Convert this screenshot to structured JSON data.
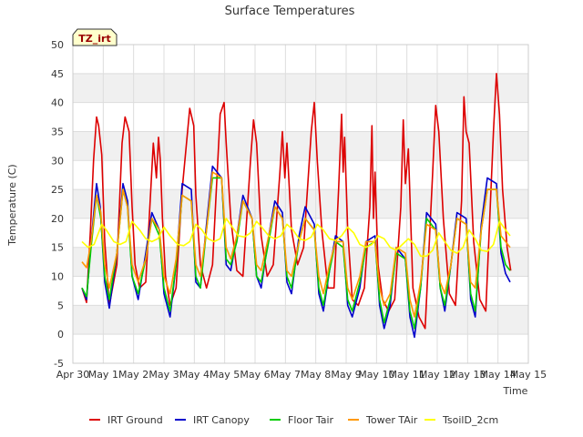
{
  "chart_data": {
    "type": "line",
    "title": "Surface Temperatures",
    "xlabel": "Time",
    "ylabel": "Temperature (C)",
    "badge": "TZ_irt",
    "ylim": [
      -5,
      50
    ],
    "xlim": [
      0,
      15
    ],
    "y_ticks": [
      -5,
      0,
      5,
      10,
      15,
      20,
      25,
      30,
      35,
      40,
      45,
      50
    ],
    "x_ticks": [
      {
        "v": 0,
        "label": "Apr 30"
      },
      {
        "v": 1,
        "label": "May 1"
      },
      {
        "v": 2,
        "label": "May 2"
      },
      {
        "v": 3,
        "label": "May 3"
      },
      {
        "v": 4,
        "label": "May 4"
      },
      {
        "v": 5,
        "label": "May 5"
      },
      {
        "v": 6,
        "label": "May 6"
      },
      {
        "v": 7,
        "label": "May 7"
      },
      {
        "v": 8,
        "label": "May 8"
      },
      {
        "v": 9,
        "label": "May 9"
      },
      {
        "v": 10,
        "label": "May 10"
      },
      {
        "v": 11,
        "label": "May 11"
      },
      {
        "v": 12,
        "label": "May 12"
      },
      {
        "v": 13,
        "label": "May 13"
      },
      {
        "v": 14,
        "label": "May 14"
      },
      {
        "v": 15,
        "label": "May 15"
      }
    ],
    "grid": true,
    "legend_position": "bottom",
    "series": [
      {
        "name": "IRT Ground",
        "color": "#dd0000",
        "x": [
          0.3,
          0.45,
          0.58,
          0.68,
          0.78,
          0.85,
          0.95,
          1.05,
          1.2,
          1.45,
          1.62,
          1.72,
          1.85,
          1.95,
          2.05,
          2.2,
          2.4,
          2.65,
          2.75,
          2.82,
          2.88,
          2.95,
          3.05,
          3.2,
          3.4,
          3.6,
          3.85,
          3.98,
          4.05,
          4.2,
          4.4,
          4.6,
          4.85,
          4.98,
          5.05,
          5.2,
          5.4,
          5.6,
          5.85,
          5.95,
          6.05,
          6.2,
          6.4,
          6.6,
          6.82,
          6.9,
          6.98,
          7.05,
          7.2,
          7.4,
          7.6,
          7.85,
          7.95,
          8.05,
          8.2,
          8.4,
          8.6,
          8.75,
          8.85,
          8.9,
          8.95,
          9.05,
          9.2,
          9.4,
          9.6,
          9.78,
          9.85,
          9.9,
          9.95,
          10.05,
          10.2,
          10.4,
          10.6,
          10.8,
          10.88,
          10.95,
          11.05,
          11.2,
          11.4,
          11.6,
          11.85,
          11.95,
          12.05,
          12.2,
          12.4,
          12.6,
          12.8,
          12.88,
          12.95,
          13.05,
          13.2,
          13.4,
          13.6,
          13.85,
          13.95,
          14.05,
          14.15,
          14.3,
          14.42
        ],
        "y": [
          8,
          5.5,
          18,
          30,
          37.5,
          36,
          31,
          16,
          5,
          12,
          33,
          37.5,
          35,
          22,
          12,
          8,
          9,
          33,
          27,
          34,
          30,
          20,
          10,
          5,
          8,
          25,
          39,
          36,
          24,
          12,
          8,
          12,
          38,
          40,
          33,
          20,
          11,
          10,
          30,
          37,
          33,
          17,
          10,
          12,
          28,
          35,
          27,
          33,
          18,
          12,
          15,
          35,
          40,
          30,
          18,
          8,
          8,
          25,
          38,
          28,
          34,
          18,
          6,
          5,
          8,
          22,
          36,
          20,
          28,
          12,
          6,
          4,
          6,
          22,
          37,
          26,
          32,
          8,
          3,
          1,
          28,
          39.5,
          35,
          20,
          7,
          5,
          23,
          41,
          35,
          33,
          16,
          6,
          4,
          35,
          45,
          38,
          25,
          15,
          11
        ]
      },
      {
        "name": "IRT Canopy",
        "color": "#0000cc",
        "x": [
          0.3,
          0.45,
          0.6,
          0.78,
          0.9,
          1.05,
          1.2,
          1.45,
          1.65,
          1.8,
          1.95,
          2.15,
          2.4,
          2.6,
          2.85,
          3.0,
          3.2,
          3.4,
          3.6,
          3.9,
          4.05,
          4.2,
          4.4,
          4.6,
          4.9,
          5.05,
          5.2,
          5.4,
          5.6,
          5.9,
          6.05,
          6.2,
          6.45,
          6.65,
          6.9,
          7.05,
          7.2,
          7.45,
          7.65,
          7.95,
          8.1,
          8.25,
          8.45,
          8.65,
          8.9,
          9.05,
          9.2,
          9.45,
          9.65,
          9.95,
          10.1,
          10.25,
          10.45,
          10.65,
          10.95,
          11.1,
          11.25,
          11.45,
          11.65,
          11.95,
          12.1,
          12.25,
          12.45,
          12.65,
          12.95,
          13.1,
          13.25,
          13.45,
          13.65,
          13.95,
          14.1,
          14.25,
          14.4
        ],
        "y": [
          8,
          6,
          16,
          26,
          22,
          9,
          4.5,
          14,
          26,
          23,
          10,
          6,
          14,
          21,
          18,
          7,
          3,
          12,
          26,
          25,
          9,
          8,
          19,
          29,
          27,
          12,
          11,
          17,
          24,
          20,
          10,
          8,
          17,
          23,
          21,
          9,
          7,
          17,
          22,
          19,
          7,
          4,
          11,
          17,
          16,
          5,
          3,
          8,
          16,
          17,
          5,
          1,
          5,
          15,
          13,
          3,
          -0.5,
          8,
          21,
          19,
          8,
          4,
          12,
          21,
          20,
          6,
          3,
          19,
          27,
          26,
          14,
          10.5,
          9
        ]
      },
      {
        "name": "Floor Tair",
        "color": "#00cc00",
        "x": [
          0.3,
          0.45,
          0.6,
          0.78,
          0.92,
          1.05,
          1.2,
          1.45,
          1.65,
          1.8,
          1.95,
          2.15,
          2.4,
          2.6,
          2.85,
          3.0,
          3.2,
          3.4,
          3.6,
          3.9,
          4.05,
          4.2,
          4.4,
          4.6,
          4.9,
          5.05,
          5.2,
          5.4,
          5.6,
          5.9,
          6.05,
          6.2,
          6.45,
          6.65,
          6.9,
          7.05,
          7.2,
          7.45,
          7.65,
          7.95,
          8.1,
          8.25,
          8.45,
          8.65,
          8.9,
          9.05,
          9.2,
          9.45,
          9.65,
          9.95,
          10.1,
          10.25,
          10.45,
          10.65,
          10.95,
          11.1,
          11.25,
          11.45,
          11.65,
          11.95,
          12.1,
          12.25,
          12.45,
          12.65,
          12.95,
          13.1,
          13.25,
          13.45,
          13.65,
          13.95,
          14.1,
          14.25,
          14.4
        ],
        "y": [
          8,
          6.5,
          15,
          24,
          20,
          10,
          6,
          14,
          25,
          22,
          10,
          7,
          13,
          20,
          17,
          8,
          4,
          12,
          24,
          23,
          10,
          8,
          18,
          27,
          27,
          13,
          12,
          16,
          23,
          20,
          10,
          9,
          16,
          22,
          20,
          10,
          8,
          16,
          20,
          18,
          8,
          5,
          11,
          16,
          15,
          6,
          4,
          9,
          15,
          16,
          6,
          2,
          6,
          14,
          13,
          4,
          1,
          8,
          20,
          18,
          8,
          5,
          12,
          20,
          19,
          7,
          4,
          18,
          25,
          25,
          15,
          12,
          11
        ]
      },
      {
        "name": "Tower TAir",
        "color": "#ff9900",
        "x": [
          0.3,
          0.45,
          0.6,
          0.78,
          0.92,
          1.05,
          1.2,
          1.45,
          1.65,
          1.8,
          1.95,
          2.15,
          2.4,
          2.6,
          2.85,
          3.0,
          3.2,
          3.4,
          3.6,
          3.9,
          4.05,
          4.2,
          4.4,
          4.6,
          4.9,
          5.05,
          5.2,
          5.4,
          5.6,
          5.9,
          6.05,
          6.2,
          6.45,
          6.65,
          6.9,
          7.05,
          7.2,
          7.45,
          7.65,
          7.95,
          8.1,
          8.25,
          8.45,
          8.65,
          8.9,
          9.05,
          9.2,
          9.45,
          9.65,
          9.95,
          10.1,
          10.25,
          10.45,
          10.65,
          10.95,
          11.1,
          11.25,
          11.45,
          11.65,
          11.95,
          12.1,
          12.25,
          12.45,
          12.65,
          12.95,
          13.1,
          13.25,
          13.45,
          13.65,
          13.95,
          14.1,
          14.25,
          14.4
        ],
        "y": [
          12.5,
          11.5,
          16,
          24,
          21,
          12,
          8,
          14,
          25,
          22,
          12,
          9,
          13,
          20,
          18,
          10,
          7,
          13,
          24,
          23,
          12,
          10,
          18,
          28,
          27,
          15,
          13,
          17,
          23,
          20,
          12,
          11,
          17,
          22,
          20,
          11,
          10,
          16,
          20,
          18,
          10,
          7,
          12,
          16,
          16,
          8,
          6,
          10,
          16,
          16,
          8,
          5,
          7,
          15,
          14,
          6,
          3,
          9,
          19,
          18,
          9,
          7,
          12,
          20,
          19,
          9,
          8,
          18,
          25,
          25,
          17,
          16,
          15
        ]
      },
      {
        "name": "TsoilD_2cm",
        "color": "#ffff00",
        "x": [
          0.3,
          0.5,
          0.7,
          0.95,
          1.1,
          1.35,
          1.55,
          1.75,
          1.95,
          2.2,
          2.4,
          2.6,
          2.8,
          3.0,
          3.2,
          3.45,
          3.65,
          3.85,
          4.05,
          4.25,
          4.45,
          4.65,
          4.85,
          5.05,
          5.25,
          5.45,
          5.65,
          5.85,
          6.05,
          6.25,
          6.45,
          6.65,
          6.85,
          7.05,
          7.25,
          7.45,
          7.65,
          7.85,
          8.05,
          8.25,
          8.45,
          8.65,
          8.85,
          9.05,
          9.25,
          9.45,
          9.65,
          9.85,
          10.05,
          10.25,
          10.45,
          10.65,
          10.85,
          11.05,
          11.25,
          11.45,
          11.65,
          11.85,
          12.05,
          12.25,
          12.45,
          12.65,
          12.85,
          13.05,
          13.25,
          13.45,
          13.65,
          13.85,
          14.05,
          14.25,
          14.4
        ],
        "y": [
          16,
          15,
          15.5,
          19,
          18,
          16,
          15.5,
          16,
          19.5,
          18,
          16.5,
          16,
          16.5,
          18.5,
          17,
          15.5,
          15.3,
          16,
          19,
          18,
          16.5,
          16,
          16.5,
          20,
          18.5,
          17,
          16.8,
          17.5,
          19.5,
          18.3,
          17,
          16.5,
          17,
          19,
          18,
          16.5,
          16.2,
          16.8,
          19,
          18,
          16.5,
          16.2,
          17,
          18.5,
          17.5,
          15.5,
          15,
          15.5,
          17,
          16.5,
          15,
          14.5,
          15.5,
          16.5,
          15.5,
          13.5,
          13.5,
          14.5,
          17.5,
          16,
          14.5,
          14,
          15,
          18,
          16.5,
          14.5,
          14.3,
          15.5,
          19.5,
          18,
          17
        ]
      }
    ]
  }
}
